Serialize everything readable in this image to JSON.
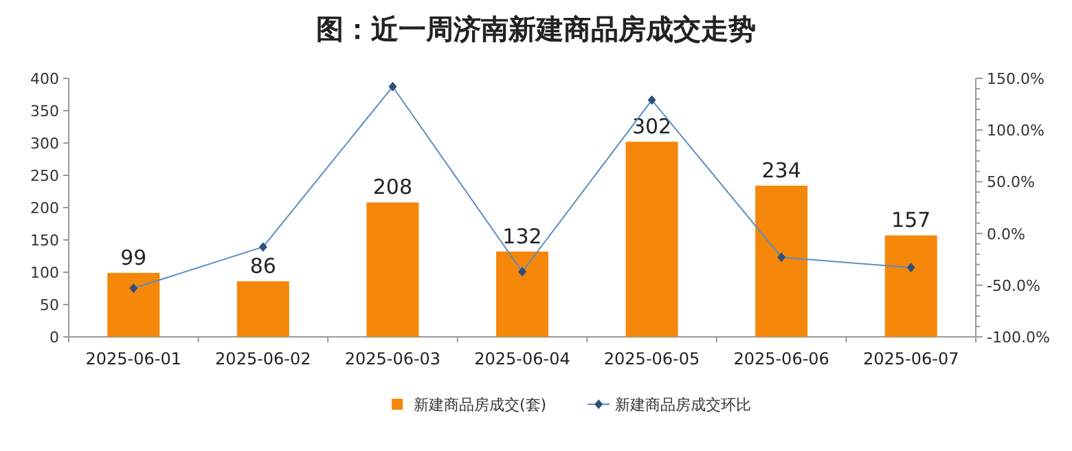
{
  "chart_data": {
    "type": "bar",
    "title": "图：近一周济南新建商品房成交走势",
    "categories": [
      "2025-06-01",
      "2025-06-02",
      "2025-06-03",
      "2025-06-04",
      "2025-06-05",
      "2025-06-06",
      "2025-06-07"
    ],
    "series": [
      {
        "name": "新建商品房成交(套)",
        "color": "#f5870a",
        "values": [
          99,
          86,
          208,
          132,
          302,
          234,
          157
        ],
        "value_labels": [
          "99",
          "86",
          "208",
          "132",
          "302",
          "234",
          "157"
        ]
      },
      {
        "name": "新建商品房成交环比",
        "type": "line",
        "axis": "y2",
        "color": "#5b8cc4",
        "values": [
          -53,
          -13,
          142,
          -37,
          129,
          -23,
          -33
        ]
      }
    ],
    "ylim": [
      0,
      400
    ],
    "yticks": [
      0,
      50,
      100,
      150,
      200,
      250,
      300,
      350,
      400
    ],
    "y2lim": [
      -100,
      150
    ],
    "y2ticks": [
      {
        "value": -100,
        "label": "-100.0%"
      },
      {
        "value": -50,
        "label": "-50.0%"
      },
      {
        "value": 0,
        "label": "0.0%"
      },
      {
        "value": 50,
        "label": "50.0%"
      },
      {
        "value": 100,
        "label": "100.0%"
      },
      {
        "value": 150,
        "label": "150.0%"
      }
    ],
    "legend": "bottom",
    "marker": "diamond",
    "line_style": "solid",
    "grid": false
  }
}
